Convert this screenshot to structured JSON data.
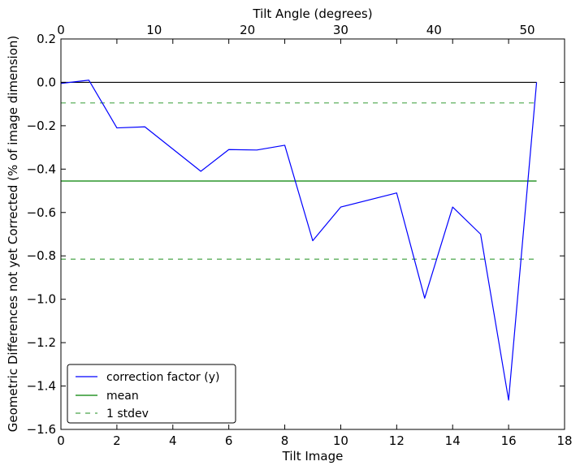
{
  "chart_data": {
    "type": "line",
    "xlabel": "Tilt Image",
    "ylabel": "Geometric Differences not yet Corrected (% of image dimension)",
    "top_xlabel": "Tilt Angle (degrees)",
    "xlim": [
      0,
      18
    ],
    "ylim": [
      -1.6,
      0.2
    ],
    "top_xlim": [
      0,
      54
    ],
    "xticks": [
      0,
      2,
      4,
      6,
      8,
      10,
      12,
      14,
      16,
      18
    ],
    "yticks": [
      0.2,
      0.0,
      -0.2,
      -0.4,
      -0.6,
      -0.8,
      -1.0,
      -1.2,
      -1.4,
      -1.6
    ],
    "ytick_labels": [
      "0.2",
      "0.0",
      "−0.2",
      "−0.4",
      "−0.6",
      "−0.8",
      "−1.0",
      "−1.2",
      "−1.4",
      "−1.6"
    ],
    "top_xticks": [
      0,
      10,
      20,
      30,
      40,
      50
    ],
    "grid": false,
    "legend_position": "lower-left",
    "series": [
      {
        "name": "correction factor (y)",
        "color": "#0000ff",
        "style": "solid",
        "x": [
          0,
          1,
          2,
          3,
          5,
          6,
          7,
          8,
          9,
          10,
          12,
          13,
          14,
          15,
          16,
          17
        ],
        "y": [
          -0.005,
          0.01,
          -0.21,
          -0.205,
          -0.41,
          -0.31,
          -0.312,
          -0.29,
          -0.73,
          -0.575,
          -0.51,
          -0.995,
          -0.575,
          -0.7,
          -1.465,
          0.0
        ]
      },
      {
        "name": "mean",
        "color": "#008000",
        "style": "solid",
        "x": [
          0,
          17
        ],
        "y": [
          -0.455,
          -0.455
        ]
      },
      {
        "name": "1 stdev",
        "color": "#008000",
        "style": "dashed",
        "x": [
          0,
          17
        ],
        "y": [
          -0.095,
          -0.095
        ]
      },
      {
        "name": "",
        "color": "#008000",
        "style": "dashed",
        "x": [
          0,
          17
        ],
        "y": [
          -0.815,
          -0.815
        ]
      },
      {
        "name": "",
        "color": "#000000",
        "style": "solid",
        "x": [
          0,
          17
        ],
        "y": [
          0.0,
          0.0
        ]
      }
    ]
  }
}
